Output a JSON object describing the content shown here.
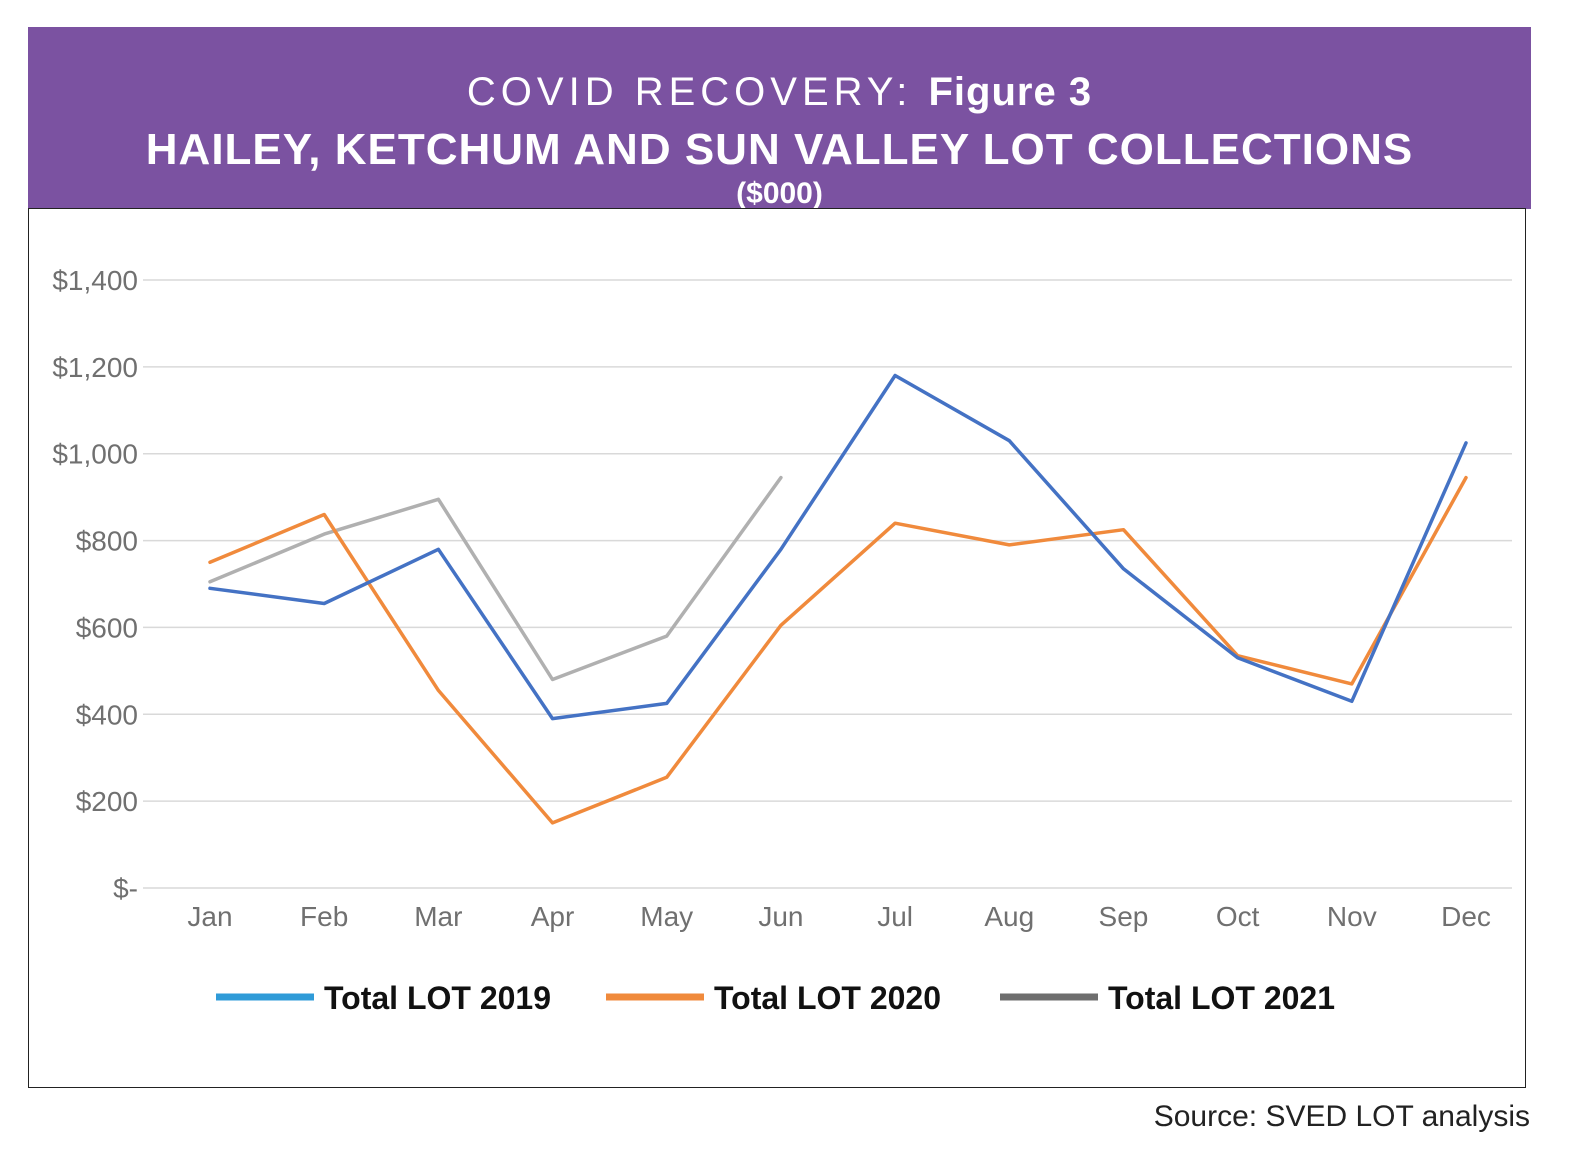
{
  "header": {
    "kicker": "COVID RECOVERY:",
    "figure": "Figure 3",
    "title": "HAILEY, KETCHUM AND SUN VALLEY LOT COLLECTIONS",
    "units": "($000)"
  },
  "source": "Source: SVED LOT analysis",
  "colors": {
    "banner": "#7b52a1",
    "grid": "#d9d9d9",
    "axis_text": "#707070"
  },
  "chart_data": {
    "type": "line",
    "categories": [
      "Jan",
      "Feb",
      "Mar",
      "Apr",
      "May",
      "Jun",
      "Jul",
      "Aug",
      "Sep",
      "Oct",
      "Nov",
      "Dec"
    ],
    "y_ticks": [
      {
        "value": 0,
        "label": "$-"
      },
      {
        "value": 200,
        "label": "$200"
      },
      {
        "value": 400,
        "label": "$400"
      },
      {
        "value": 600,
        "label": "$600"
      },
      {
        "value": 800,
        "label": "$800"
      },
      {
        "value": 1000,
        "label": "$1,000"
      },
      {
        "value": 1200,
        "label": "$1,200"
      },
      {
        "value": 1400,
        "label": "$1,400"
      }
    ],
    "ylim": [
      0,
      1400
    ],
    "grid": true,
    "legend_position": "bottom",
    "series": [
      {
        "name": "Total LOT 2019",
        "color": "#4472c4",
        "legend_color": "#2f9bd8",
        "values": [
          690,
          655,
          780,
          390,
          425,
          780,
          1180,
          1030,
          735,
          530,
          430,
          1025
        ]
      },
      {
        "name": "Total LOT 2020",
        "color": "#f08a3c",
        "legend_color": "#f08a3c",
        "values": [
          750,
          860,
          455,
          150,
          255,
          605,
          840,
          790,
          825,
          535,
          470,
          945
        ]
      },
      {
        "name": "Total LOT 2021",
        "color": "#b0b0b0",
        "legend_color": "#6e6e6e",
        "values": [
          705,
          815,
          895,
          480,
          580,
          945,
          null,
          null,
          null,
          null,
          null,
          null
        ]
      }
    ]
  }
}
